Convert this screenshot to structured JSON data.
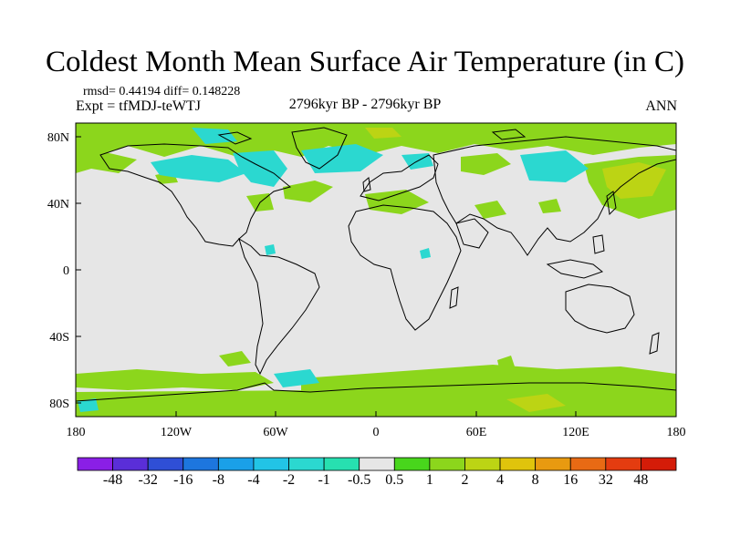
{
  "title": "Coldest Month Mean Surface Air Temperature (in C)",
  "stats": "rmsd= 0.44194  diff= 0.148228",
  "expt": "Expt = tfMDJ-teWTJ",
  "period": "2796kyr BP - 2796kyr BP",
  "season": "ANN",
  "x_ticks": [
    "180",
    "120W",
    "60W",
    "0",
    "60E",
    "120E",
    "180"
  ],
  "y_ticks": [
    "80N",
    "40N",
    "0",
    "40S",
    "80S"
  ],
  "colorbar": {
    "labels": [
      "-48",
      "-32",
      "-16",
      "-8",
      "-4",
      "-2",
      "-1",
      "-0.5",
      "0.5",
      "1",
      "2",
      "4",
      "8",
      "16",
      "32",
      "48"
    ],
    "colors": [
      "#8a1fe6",
      "#5a2ed8",
      "#2f4fd6",
      "#1d76de",
      "#1aa0e8",
      "#22c4e6",
      "#2bd8d0",
      "#27e0b0",
      "#e6e6e6",
      "#48d61c",
      "#8cd61c",
      "#bcd414",
      "#e0c40c",
      "#e89a10",
      "#e86a14",
      "#e43c10",
      "#d41c08"
    ]
  },
  "colors": {
    "land_outline": "#000000",
    "neutral": "#e6e6e6",
    "cool": "#2bd8d0",
    "warm": "#8cd61c",
    "warmer": "#bcd414"
  }
}
